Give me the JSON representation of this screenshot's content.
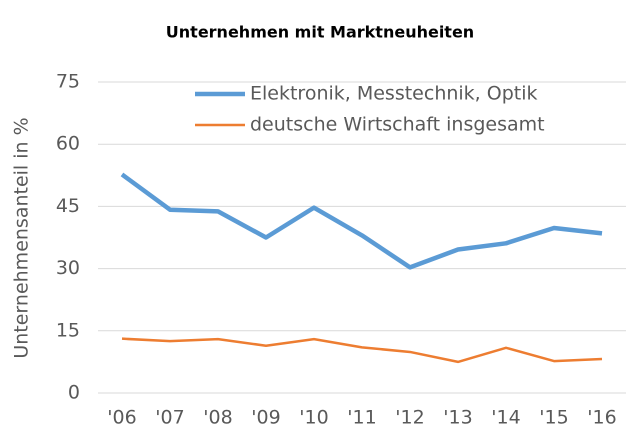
{
  "chart_data": {
    "type": "line",
    "title": "Unternehmen mit Marktneuheiten",
    "y_label": "Unternehmensanteil in %",
    "categories": [
      "'06",
      "'07",
      "'08",
      "'09",
      "'10",
      "'11",
      "'12",
      "'13",
      "'14",
      "'15",
      "'16"
    ],
    "series": [
      {
        "name": "Elektronik, Messtechnik, Optik",
        "color": "#5b9bd5",
        "values": [
          52.7,
          44.2,
          43.8,
          37.5,
          44.7,
          38,
          30.3,
          34.6,
          36.1,
          39.8,
          38.5
        ]
      },
      {
        "name": "deutsche Wirtschaft insgesamt",
        "color": "#ed7d31",
        "values": [
          13.1,
          12.5,
          13,
          11.4,
          13,
          11,
          9.9,
          7.5,
          10.9,
          7.7,
          8.2
        ]
      }
    ],
    "ylim": [
      0,
      75
    ],
    "yticks": [
      0,
      15,
      30,
      45,
      60,
      75
    ],
    "grid": true,
    "legend": "top"
  }
}
